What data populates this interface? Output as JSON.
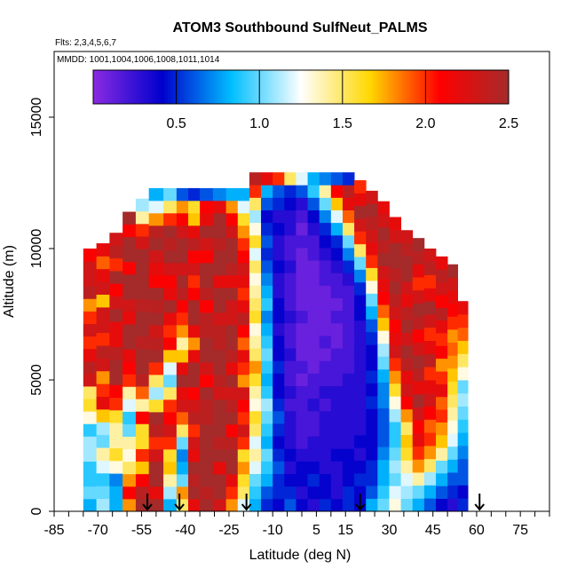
{
  "chart_data": {
    "type": "heatmap",
    "title": "ATOM3 Southbound SulfNeut_PALMS",
    "subtitle_lines": [
      "Flts: 2,3,4,5,6,7",
      "MMDD: 1001,1004,1006,1008,1011,1014"
    ],
    "xlabel": "Latitude (deg N)",
    "ylabel": "Altitude (m)",
    "xlim": [
      -85,
      85
    ],
    "ylim": [
      0,
      17500
    ],
    "x_ticks": [
      -85,
      -70,
      -55,
      -40,
      -25,
      -10,
      5,
      15,
      30,
      45,
      60,
      75
    ],
    "y_ticks": [
      0,
      5000,
      10000,
      15000
    ],
    "colorbar": {
      "range": [
        0,
        2.5
      ],
      "ticks": [
        0.5,
        1.0,
        1.5,
        2.0,
        2.5
      ],
      "tick_labels": [
        "0.5",
        "1.0",
        "1.5",
        "2.0",
        "2.5"
      ],
      "colors": [
        "#8a2be2",
        "#0000cd",
        "#00bfff",
        "#ffffff",
        "#ffd700",
        "#ff0000",
        "#a52a2a"
      ]
    },
    "profile_markers_lat": [
      -53,
      -42,
      -19,
      20,
      61
    ],
    "columns": [
      {
        "lat": -73,
        "alt_max": 10000,
        "values": [
          0.8,
          1.0,
          0.9,
          0.9,
          1.1,
          1.1,
          0.9,
          1.3,
          1.6,
          1.5,
          2.3,
          2.4,
          2.2,
          2.0,
          2.3,
          2.0,
          1.8,
          2.4,
          2.3,
          2.3,
          2.1
        ]
      },
      {
        "lat": -68,
        "alt_max": 10200,
        "values": [
          1.1,
          1.0,
          0.9,
          1.2,
          1.4,
          1.0,
          1.1,
          1.7,
          2.2,
          2.0,
          1.8,
          2.3,
          2.4,
          2.0,
          2.3,
          2.3,
          1.7,
          2.3,
          2.2,
          1.9,
          2.2
        ]
      },
      {
        "lat": -64,
        "alt_max": 10600,
        "values": [
          0.8,
          0.8,
          0.7,
          1.3,
          1.6,
          1.4,
          1.4,
          1.6,
          2.0,
          2.1,
          2.5,
          2.5,
          2.4,
          2.2,
          2.2,
          2.5,
          2.3,
          2.1,
          2.5,
          2.0,
          2.4,
          2.3
        ]
      },
      {
        "lat": -59,
        "alt_max": 11400,
        "values": [
          1.8,
          2.1,
          1.8,
          1.5,
          1.3,
          1.4,
          1.0,
          0.9,
          1.2,
          1.4,
          2.0,
          2.1,
          2.2,
          2.5,
          2.5,
          2.2,
          2.3,
          2.5,
          2.5,
          2.1,
          2.5,
          2.5,
          2.1,
          2.5
        ]
      },
      {
        "lat": -55,
        "alt_max": 11900,
        "values": [
          2.5,
          2.4,
          2.1,
          1.7,
          2.0,
          1.6,
          1.6,
          2.1,
          1.4,
          1.9,
          2.4,
          2.5,
          2.5,
          2.4,
          2.5,
          2.5,
          2.4,
          2.5,
          2.5,
          2.5,
          2.5,
          2.3,
          2.0,
          1.4,
          1.1
        ]
      },
      {
        "lat": -50,
        "alt_max": 12300,
        "values": [
          2.5,
          2.2,
          2.5,
          2.5,
          2.3,
          2.0,
          2.4,
          2.5,
          1.6,
          1.1,
          1.5,
          2.0,
          2.5,
          2.4,
          2.3,
          2.5,
          2.4,
          2.5,
          2.1,
          2.2,
          2.3,
          2.5,
          2.4,
          1.8,
          1.2,
          0.8
        ]
      },
      {
        "lat": -45,
        "alt_max": 12300,
        "values": [
          0.8,
          1.1,
          1.4,
          1.7,
          1.6,
          2.0,
          2.3,
          2.1,
          2.0,
          1.5,
          1.0,
          1.2,
          1.7,
          2.1,
          2.0,
          2.2,
          2.5,
          2.2,
          2.1,
          2.3,
          2.5,
          2.4,
          2.5,
          2.0,
          1.5,
          1.0
        ]
      },
      {
        "lat": -41,
        "alt_max": 12300,
        "values": [
          1.5,
          1.8,
          1.0,
          0.8,
          0.7,
          1.0,
          1.5,
          1.9,
          2.3,
          2.2,
          2.5,
          2.2,
          1.7,
          1.4,
          1.8,
          2.0,
          2.1,
          2.4,
          2.5,
          2.3,
          2.5,
          2.5,
          2.3,
          2.1,
          1.8,
          0.6
        ]
      },
      {
        "lat": -37,
        "alt_max": 12300,
        "values": [
          2.2,
          2.5,
          2.4,
          2.5,
          2.2,
          2.3,
          2.0,
          2.4,
          2.3,
          2.1,
          2.5,
          2.5,
          2.2,
          1.8,
          2.2,
          2.5,
          2.5,
          2.1,
          2.0,
          2.3,
          2.1,
          2.4,
          2.2,
          1.7,
          1.6,
          0.5
        ]
      },
      {
        "lat": -33,
        "alt_max": 12300,
        "values": [
          2.5,
          2.4,
          2.5,
          2.5,
          2.5,
          2.5,
          2.5,
          2.4,
          2.4,
          2.5,
          2.1,
          2.3,
          2.5,
          2.5,
          2.4,
          2.4,
          2.1,
          2.4,
          2.5,
          2.5,
          2.1,
          2.3,
          2.5,
          2.2,
          2.1,
          0.6
        ]
      },
      {
        "lat": -28,
        "alt_max": 12300,
        "values": [
          2.3,
          2.5,
          2.5,
          2.2,
          2.5,
          2.4,
          2.5,
          2.5,
          2.5,
          2.3,
          2.4,
          2.5,
          2.5,
          2.4,
          2.4,
          2.3,
          2.5,
          2.5,
          2.2,
          2.5,
          2.5,
          2.4,
          2.5,
          2.5,
          2.2,
          0.7
        ]
      },
      {
        "lat": -24,
        "alt_max": 12300,
        "values": [
          1.8,
          2.0,
          2.2,
          2.5,
          2.5,
          2.4,
          2.1,
          2.5,
          2.4,
          2.3,
          2.5,
          2.2,
          2.4,
          2.5,
          2.5,
          2.3,
          2.3,
          2.5,
          2.2,
          2.4,
          2.5,
          2.5,
          2.3,
          2.1,
          1.8,
          0.8
        ]
      },
      {
        "lat": -20,
        "alt_max": 12300,
        "values": [
          1.2,
          1.5,
          1.6,
          1.8,
          1.6,
          2.0,
          2.3,
          2.0,
          2.1,
          2.3,
          1.8,
          2.0,
          2.2,
          1.9,
          2.1,
          2.4,
          2.2,
          2.0,
          2.2,
          2.3,
          2.1,
          2.0,
          1.8,
          1.6,
          1.2,
          0.8
        ]
      },
      {
        "lat": -16,
        "alt_max": 12900,
        "values": [
          0.8,
          0.9,
          1.0,
          1.2,
          1.4,
          1.2,
          1.5,
          1.6,
          1.3,
          1.4,
          1.6,
          1.8,
          1.5,
          1.4,
          1.3,
          1.6,
          1.5,
          1.4,
          1.3,
          1.5,
          1.2,
          1.6,
          1.3,
          1.1,
          1.5,
          2.0,
          2.4
        ]
      },
      {
        "lat": -12,
        "alt_max": 12900,
        "values": [
          0.5,
          0.6,
          0.8,
          0.9,
          1.0,
          0.8,
          0.9,
          1.0,
          1.1,
          0.9,
          0.8,
          0.9,
          1.0,
          0.9,
          0.8,
          0.7,
          0.9,
          0.8,
          0.7,
          0.6,
          0.5,
          0.6,
          0.5,
          0.4,
          0.6,
          0.8,
          2.2
        ]
      },
      {
        "lat": -8,
        "alt_max": 12900,
        "values": [
          0.4,
          0.5,
          0.5,
          0.6,
          0.5,
          0.4,
          0.5,
          0.6,
          0.5,
          0.4,
          0.4,
          0.5,
          0.4,
          0.4,
          0.3,
          0.4,
          0.4,
          0.3,
          0.3,
          0.4,
          0.3,
          0.3,
          0.4,
          0.3,
          0.5,
          0.6,
          2.0
        ]
      },
      {
        "lat": -4,
        "alt_max": 12900,
        "values": [
          0.6,
          0.5,
          0.4,
          0.3,
          0.4,
          0.3,
          0.3,
          0.3,
          0.2,
          0.3,
          0.2,
          0.2,
          0.3,
          0.2,
          0.2,
          0.3,
          0.2,
          0.2,
          0.2,
          0.3,
          0.2,
          0.2,
          0.3,
          0.3,
          0.4,
          0.5,
          1.5
        ]
      },
      {
        "lat": 0,
        "alt_max": 12900,
        "values": [
          0.4,
          0.3,
          0.4,
          0.4,
          0.3,
          0.2,
          0.2,
          0.2,
          0.2,
          0.2,
          0.1,
          0.2,
          0.1,
          0.1,
          0.1,
          0.2,
          0.1,
          0.1,
          0.1,
          0.1,
          0.1,
          0.2,
          0.1,
          0.2,
          0.3,
          0.6,
          1.2
        ]
      },
      {
        "lat": 4,
        "alt_max": 12900,
        "values": [
          0.3,
          0.4,
          0.5,
          0.4,
          0.3,
          0.3,
          0.2,
          0.2,
          0.3,
          0.2,
          0.2,
          0.1,
          0.1,
          0.1,
          0.1,
          0.1,
          0.1,
          0.1,
          0.1,
          0.1,
          0.2,
          0.2,
          0.3,
          0.4,
          0.6,
          0.9,
          0.8
        ]
      },
      {
        "lat": 8,
        "alt_max": 12900,
        "values": [
          0.5,
          0.4,
          0.4,
          0.3,
          0.3,
          0.3,
          0.3,
          0.3,
          0.2,
          0.3,
          0.2,
          0.2,
          0.1,
          0.2,
          0.1,
          0.1,
          0.1,
          0.1,
          0.2,
          0.2,
          0.3,
          0.4,
          0.5,
          0.7,
          1.0,
          1.4,
          0.7
        ]
      },
      {
        "lat": 12,
        "alt_max": 12900,
        "values": [
          0.4,
          0.3,
          0.3,
          0.3,
          0.4,
          0.3,
          0.3,
          0.3,
          0.3,
          0.3,
          0.2,
          0.2,
          0.2,
          0.1,
          0.1,
          0.2,
          0.1,
          0.2,
          0.2,
          0.3,
          0.4,
          0.5,
          0.8,
          1.2,
          1.7,
          2.1,
          0.6
        ]
      },
      {
        "lat": 16,
        "alt_max": 12900,
        "values": [
          0.5,
          0.5,
          0.4,
          0.4,
          0.4,
          0.3,
          0.3,
          0.3,
          0.3,
          0.3,
          0.3,
          0.2,
          0.2,
          0.2,
          0.2,
          0.2,
          0.2,
          0.2,
          0.3,
          0.5,
          0.7,
          1.0,
          1.5,
          1.9,
          2.2,
          2.4,
          0.5
        ]
      },
      {
        "lat": 20,
        "alt_max": 12600,
        "values": [
          0.4,
          0.4,
          0.5,
          0.4,
          0.3,
          0.4,
          0.3,
          0.3,
          0.3,
          0.3,
          0.3,
          0.3,
          0.3,
          0.3,
          0.3,
          0.4,
          0.4,
          0.5,
          0.7,
          1.0,
          1.5,
          2.0,
          2.3,
          2.5,
          2.2,
          2.0
        ]
      },
      {
        "lat": 24,
        "alt_max": 12200,
        "values": [
          0.8,
          0.6,
          0.5,
          0.5,
          0.4,
          0.4,
          0.4,
          0.4,
          0.5,
          0.4,
          0.5,
          0.4,
          0.4,
          0.5,
          0.6,
          0.8,
          1.0,
          1.3,
          1.6,
          2.0,
          2.2,
          2.3,
          2.4,
          2.5,
          2.3
        ]
      },
      {
        "lat": 28,
        "alt_max": 11800,
        "values": [
          1.0,
          0.9,
          0.8,
          0.8,
          0.7,
          0.6,
          0.6,
          0.6,
          0.7,
          0.7,
          0.8,
          1.0,
          1.1,
          1.3,
          1.7,
          1.9,
          2.1,
          2.2,
          2.3,
          2.5,
          2.4,
          2.5,
          2.3,
          2.2
        ]
      },
      {
        "lat": 32,
        "alt_max": 11200,
        "values": [
          1.3,
          1.2,
          1.0,
          1.1,
          1.0,
          0.9,
          0.9,
          1.1,
          1.3,
          1.6,
          1.8,
          2.0,
          2.3,
          2.2,
          2.1,
          2.3,
          2.4,
          2.5,
          2.4,
          2.5,
          2.5,
          2.3,
          2.2
        ]
      },
      {
        "lat": 36,
        "alt_max": 10700,
        "values": [
          1.0,
          1.1,
          1.2,
          1.4,
          1.6,
          1.7,
          1.5,
          1.8,
          2.1,
          2.3,
          2.2,
          2.4,
          2.5,
          2.3,
          2.5,
          2.4,
          2.2,
          2.3,
          2.5,
          2.5,
          2.4,
          2.3
        ]
      },
      {
        "lat": 40,
        "alt_max": 10400,
        "values": [
          0.8,
          1.0,
          1.4,
          1.8,
          2.0,
          2.2,
          2.1,
          2.3,
          2.5,
          2.2,
          2.4,
          2.5,
          2.3,
          2.1,
          2.4,
          2.5,
          2.3,
          2.0,
          2.2,
          2.4,
          2.5
        ]
      },
      {
        "lat": 44,
        "alt_max": 10000,
        "values": [
          0.6,
          0.8,
          1.1,
          1.5,
          1.8,
          2.0,
          1.9,
          2.1,
          2.3,
          2.2,
          2.0,
          2.4,
          2.2,
          2.0,
          2.3,
          2.5,
          2.2,
          2.0,
          2.4,
          2.3
        ]
      },
      {
        "lat": 48,
        "alt_max": 9700,
        "values": [
          0.4,
          0.6,
          0.8,
          1.0,
          1.4,
          1.7,
          1.8,
          2.0,
          1.9,
          2.2,
          2.0,
          1.8,
          2.1,
          2.0,
          2.2,
          2.4,
          2.1,
          2.3,
          2.4,
          2.2
        ]
      },
      {
        "lat": 52,
        "alt_max": 9400,
        "values": [
          0.3,
          0.5,
          0.6,
          0.8,
          1.0,
          1.2,
          1.3,
          1.4,
          1.5,
          1.6,
          1.7,
          1.8,
          1.9,
          1.8,
          2.0,
          2.1,
          2.2,
          2.3,
          2.5
        ]
      },
      {
        "lat": 55,
        "alt_max": 8000,
        "values": [
          0.5,
          0.4,
          0.6,
          0.6,
          0.7,
          0.8,
          0.9,
          1.0,
          1.1,
          1.0,
          1.3,
          1.5,
          1.7,
          1.9,
          2.0,
          2.2
        ]
      }
    ]
  }
}
